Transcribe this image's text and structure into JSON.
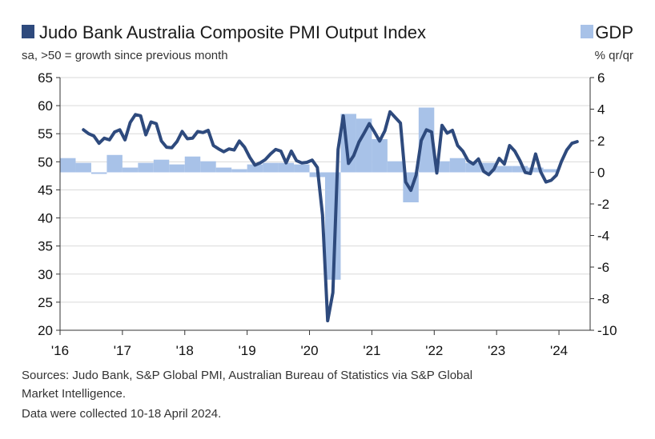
{
  "colors": {
    "pmi": "#2e4a7d",
    "gdp": "#a8c2e8",
    "grid": "#d9d9d9",
    "axis": "#333333"
  },
  "chart_data": {
    "type": "line+bar",
    "title": "Judo Bank Australia Composite PMI Output Index",
    "subtitle": "sa, >50 = growth since previous month",
    "gdp_legend": "GDP",
    "gdp_unit": "% qr/qr",
    "left_axis": {
      "min": 20,
      "max": 65,
      "ticks": [
        "65",
        "60",
        "55",
        "50",
        "45",
        "40",
        "35",
        "30",
        "25",
        "20"
      ]
    },
    "right_axis": {
      "min": -10,
      "max": 6,
      "ticks": [
        "6",
        "4",
        "2",
        "0",
        "-2",
        "-4",
        "-6",
        "-8",
        "-10"
      ]
    },
    "x_axis": {
      "start_year": 2016,
      "end_year": 2024.5,
      "labels": [
        "'16",
        "'17",
        "'18",
        "'19",
        "'20",
        "'21",
        "'22",
        "'23",
        "'24"
      ]
    },
    "gdp_series": {
      "name": "GDP",
      "quarters": [
        "2016Q1",
        "2016Q2",
        "2016Q3",
        "2016Q4",
        "2017Q1",
        "2017Q2",
        "2017Q3",
        "2017Q4",
        "2018Q1",
        "2018Q2",
        "2018Q3",
        "2018Q4",
        "2019Q1",
        "2019Q2",
        "2019Q3",
        "2019Q4",
        "2020Q1",
        "2020Q2",
        "2020Q3",
        "2020Q4",
        "2021Q1",
        "2021Q2",
        "2021Q3",
        "2021Q4",
        "2022Q1",
        "2022Q2",
        "2022Q3",
        "2022Q4",
        "2023Q1",
        "2023Q2",
        "2023Q3",
        "2023Q4"
      ],
      "values": [
        0.9,
        0.6,
        -0.1,
        1.1,
        0.3,
        0.6,
        0.8,
        0.5,
        1.0,
        0.7,
        0.3,
        0.2,
        0.5,
        0.6,
        0.6,
        0.5,
        -0.3,
        -6.8,
        3.7,
        3.4,
        2.1,
        0.7,
        -1.9,
        4.1,
        0.7,
        0.9,
        0.6,
        0.6,
        0.4,
        0.4,
        0.3,
        0.2
      ]
    },
    "pmi_series": {
      "name": "Judo Bank Australia Composite PMI Output Index",
      "start": "2016-05",
      "values": [
        55.7,
        55.0,
        54.6,
        53.3,
        54.2,
        53.9,
        55.3,
        55.7,
        53.9,
        57.0,
        58.4,
        58.2,
        54.8,
        57.1,
        56.8,
        53.7,
        52.6,
        52.5,
        53.6,
        55.4,
        54.1,
        54.2,
        55.4,
        55.2,
        55.6,
        52.9,
        52.3,
        51.8,
        52.3,
        52.1,
        53.7,
        52.6,
        50.8,
        49.4,
        49.8,
        50.4,
        51.4,
        52.2,
        51.9,
        49.8,
        51.9,
        50.2,
        49.8,
        49.9,
        50.3,
        49.0,
        40.5,
        21.7,
        26.7,
        52.2,
        58.2,
        49.7,
        51.1,
        53.5,
        55.1,
        56.8,
        55.3,
        53.7,
        55.5,
        58.9,
        57.9,
        56.9,
        46.4,
        44.9,
        47.6,
        53.8,
        55.7,
        55.3,
        48.0,
        56.5,
        55.1,
        55.6,
        52.9,
        51.9,
        50.2,
        49.6,
        50.5,
        48.3,
        47.7,
        48.7,
        50.6,
        49.6,
        52.9,
        51.9,
        50.2,
        48.1,
        47.9,
        51.4,
        48.2,
        46.4,
        46.7,
        47.6,
        50.1,
        52.1,
        53.3,
        53.6
      ]
    }
  },
  "sources": {
    "line1": "Sources: Judo Bank, S&P Global PMI, Australian Bureau of Statistics via S&P Global",
    "line2": "Market Intelligence.",
    "line3": "Data were collected 10-18 April 2024."
  }
}
